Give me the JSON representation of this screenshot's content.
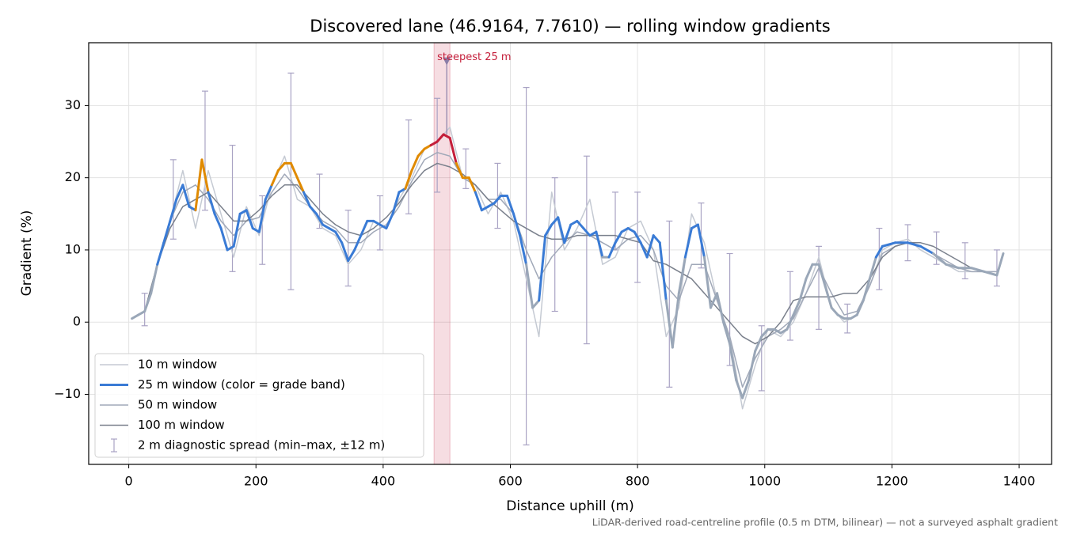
{
  "chart_data": {
    "type": "line",
    "title": "Discovered lane (46.9164, 7.7610) — rolling window gradients",
    "xlabel": "Distance uphill (m)",
    "ylabel": "Gradient (%)",
    "footnote": "LiDAR-derived road-centreline profile (0.5 m DTM, bilinear) — not a surveyed asphalt gradient",
    "xlim": [
      -63,
      1451
    ],
    "ylim": [
      -19.7,
      38.7
    ],
    "xticks": [
      0,
      200,
      400,
      600,
      800,
      1000,
      1200,
      1400
    ],
    "yticks": [
      {
        "value": -10,
        "label": "−10"
      },
      0,
      10,
      20,
      30
    ],
    "grid": true,
    "legend": "lower left",
    "series": [
      {
        "name": "10 m window",
        "color": "#c5cad3",
        "width": 1.5,
        "x": [
          5,
          25,
          45,
          65,
          85,
          105,
          125,
          145,
          165,
          185,
          205,
          225,
          245,
          265,
          285,
          305,
          325,
          345,
          365,
          385,
          405,
          425,
          445,
          465,
          485,
          505,
          525,
          545,
          565,
          585,
          605,
          625,
          645,
          665,
          685,
          705,
          725,
          745,
          765,
          785,
          805,
          825,
          845,
          865,
          885,
          905,
          925,
          945,
          965,
          985,
          1005,
          1025,
          1045,
          1065,
          1085,
          1105,
          1125,
          1145,
          1165,
          1185,
          1205,
          1225,
          1245,
          1265,
          1285,
          1305,
          1325,
          1345,
          1365
        ],
        "values": [
          0.5,
          1.5,
          8,
          14,
          21,
          13,
          21,
          15,
          9,
          16,
          12,
          19,
          23,
          17,
          16,
          13,
          12,
          8,
          10,
          14,
          13,
          17,
          20,
          24,
          25,
          27,
          20,
          19,
          15,
          18,
          14,
          6,
          -2,
          18,
          10,
          13,
          17,
          8,
          9,
          13,
          14,
          10,
          -2,
          2,
          15,
          11,
          3,
          -2,
          -12,
          -6,
          -1,
          -2,
          0,
          4,
          9,
          2,
          0,
          1,
          5,
          10,
          11,
          11.5,
          10,
          9,
          8,
          7,
          7,
          7,
          7
        ]
      },
      {
        "name": "25 m window (color = grade band)",
        "color": "#3a7bd5",
        "width": 3,
        "banded": true,
        "x": [
          5,
          15,
          25,
          35,
          45,
          55,
          65,
          75,
          85,
          95,
          105,
          115,
          125,
          135,
          145,
          155,
          165,
          175,
          185,
          195,
          205,
          215,
          225,
          235,
          245,
          255,
          265,
          275,
          285,
          295,
          305,
          315,
          325,
          335,
          345,
          355,
          365,
          375,
          385,
          395,
          405,
          415,
          425,
          435,
          445,
          455,
          465,
          475,
          485,
          495,
          505,
          515,
          525,
          535,
          545,
          555,
          565,
          575,
          585,
          595,
          605,
          615,
          625,
          635,
          645,
          655,
          665,
          675,
          685,
          695,
          705,
          715,
          725,
          735,
          745,
          755,
          765,
          775,
          785,
          795,
          805,
          815,
          825,
          835,
          845,
          855,
          865,
          875,
          885,
          895,
          905,
          915,
          925,
          935,
          945,
          955,
          965,
          975,
          985,
          995,
          1005,
          1015,
          1025,
          1035,
          1045,
          1055,
          1065,
          1075,
          1085,
          1095,
          1105,
          1115,
          1125,
          1135,
          1145,
          1155,
          1165,
          1175,
          1185,
          1205,
          1225,
          1245,
          1265,
          1285,
          1305,
          1325,
          1345,
          1365,
          1375
        ],
        "values": [
          0.5,
          1,
          1.5,
          4,
          8,
          11,
          14,
          17,
          19,
          16,
          15.5,
          22.5,
          18,
          15,
          13,
          10,
          10.5,
          15,
          15.5,
          13,
          12.5,
          17,
          19,
          21,
          22,
          22,
          20,
          18,
          16,
          15,
          13.5,
          13,
          12.5,
          11,
          8.5,
          10,
          12,
          14,
          14,
          13.5,
          13,
          15,
          18,
          18.5,
          21,
          23,
          24,
          24.5,
          25,
          26,
          25.5,
          22,
          20,
          20,
          18,
          15.5,
          16,
          16.5,
          17.5,
          17.5,
          15,
          12,
          8,
          2,
          3,
          12,
          13.5,
          14.5,
          11,
          13.5,
          14,
          13,
          12,
          12.5,
          9,
          9,
          11,
          12.5,
          13,
          12.5,
          11,
          9,
          12,
          11,
          3,
          -3.5,
          4,
          9,
          13,
          13.5,
          9,
          2,
          4,
          0,
          -3,
          -8,
          -10.5,
          -8,
          -4,
          -2,
          -1,
          -1,
          -1.5,
          -1,
          1,
          3,
          6,
          8,
          8,
          5,
          2,
          1,
          0.5,
          0.5,
          1,
          3,
          6,
          9,
          10.5,
          11,
          11,
          10.5,
          9.5,
          8,
          7.5,
          7.5,
          7,
          6.5,
          9.5
        ]
      },
      {
        "name": "50 m window",
        "color": "#a0a8b8",
        "width": 1.5,
        "x": [
          5,
          25,
          45,
          65,
          85,
          105,
          125,
          145,
          165,
          185,
          205,
          225,
          245,
          265,
          285,
          305,
          325,
          345,
          365,
          385,
          405,
          425,
          445,
          465,
          485,
          505,
          525,
          545,
          565,
          585,
          605,
          625,
          645,
          665,
          685,
          705,
          725,
          745,
          765,
          785,
          805,
          825,
          845,
          865,
          885,
          905,
          925,
          945,
          965,
          985,
          1005,
          1025,
          1045,
          1065,
          1085,
          1105,
          1125,
          1145,
          1165,
          1185,
          1205,
          1225,
          1245,
          1265,
          1285,
          1305,
          1325,
          1345,
          1365
        ],
        "values": [
          0.5,
          1.5,
          8,
          14,
          18,
          19,
          17,
          14,
          12,
          14,
          14.5,
          18,
          20.5,
          18.5,
          16,
          14,
          13,
          11,
          11,
          12.5,
          13.5,
          16,
          19.5,
          22.5,
          23.5,
          23,
          20,
          19,
          17,
          17,
          15,
          10,
          6,
          9,
          11,
          12.5,
          12,
          11,
          10,
          11.5,
          12,
          10,
          5,
          3,
          8,
          8,
          3,
          -2,
          -9,
          -5,
          -2,
          -1,
          0.5,
          4,
          7.5,
          4,
          1,
          1.5,
          5,
          9.5,
          10.5,
          11,
          10.5,
          9.5,
          8.5,
          7.5,
          7,
          7,
          7
        ]
      },
      {
        "name": "100 m window",
        "color": "#7a808c",
        "width": 1.5,
        "x": [
          5,
          25,
          45,
          65,
          85,
          105,
          125,
          145,
          165,
          185,
          205,
          225,
          245,
          265,
          285,
          305,
          325,
          345,
          365,
          385,
          405,
          425,
          445,
          465,
          485,
          505,
          525,
          545,
          565,
          585,
          605,
          625,
          645,
          665,
          685,
          705,
          725,
          745,
          765,
          785,
          805,
          825,
          845,
          865,
          885,
          905,
          925,
          945,
          965,
          985,
          1005,
          1025,
          1045,
          1065,
          1085,
          1105,
          1125,
          1145,
          1165,
          1185,
          1205,
          1225,
          1245,
          1265,
          1285,
          1305,
          1325,
          1345,
          1365
        ],
        "values": [
          0.5,
          1.5,
          8,
          13,
          16,
          17,
          18,
          16,
          14,
          14,
          15.5,
          17.5,
          19,
          19,
          17,
          15,
          13.5,
          12.5,
          12,
          13,
          14.5,
          16.5,
          19,
          21,
          22,
          21.5,
          20.5,
          19,
          17,
          15.5,
          14,
          13,
          12,
          11.5,
          11.5,
          12,
          12,
          12,
          12,
          11.5,
          11,
          8.5,
          8,
          7,
          6,
          4,
          2,
          0,
          -2,
          -3,
          -2,
          0,
          3,
          3.5,
          3.5,
          3.5,
          4,
          4,
          6,
          9,
          10.5,
          11,
          11,
          10.5,
          9.5,
          8.5,
          7.5,
          7,
          6.5
        ]
      }
    ],
    "band_thresholds": [
      10,
      20,
      25
    ],
    "band_colors": [
      "#9aa7b8",
      "#3a7bd5",
      "#e08a00",
      "#c41e3a"
    ],
    "errorbars": {
      "name": "2 m diagnostic spread (min–max, ±12 m)",
      "color": "#a9a3c4",
      "x": [
        25,
        70,
        120,
        163,
        210,
        255,
        300,
        345,
        395,
        440,
        485,
        530,
        580,
        625,
        670,
        720,
        765,
        800,
        850,
        900,
        945,
        995,
        1040,
        1085,
        1130,
        1180,
        1225,
        1270,
        1315,
        1365
      ],
      "min": [
        -0.5,
        11.5,
        15.5,
        7,
        8,
        4.5,
        13,
        5,
        10,
        15,
        18,
        18.5,
        13,
        -17,
        1.5,
        -3,
        10,
        5.5,
        -9,
        7.5,
        -6,
        -9.5,
        -2.5,
        -1,
        -1.5,
        4.5,
        8.5,
        8,
        6,
        5
      ],
      "max": [
        4,
        22.5,
        32,
        24.5,
        17.5,
        34.5,
        20.5,
        15.5,
        17.5,
        28,
        31,
        24,
        22,
        32.5,
        20,
        23,
        18,
        18,
        14,
        16.5,
        9.5,
        -0.5,
        7,
        10.5,
        2.5,
        13,
        13.5,
        12.5,
        11,
        10
      ]
    },
    "highlight": {
      "label": "steepest 25 m",
      "span": [
        480,
        505
      ],
      "x": 500,
      "y": 36,
      "color": "#c41e3a"
    }
  }
}
